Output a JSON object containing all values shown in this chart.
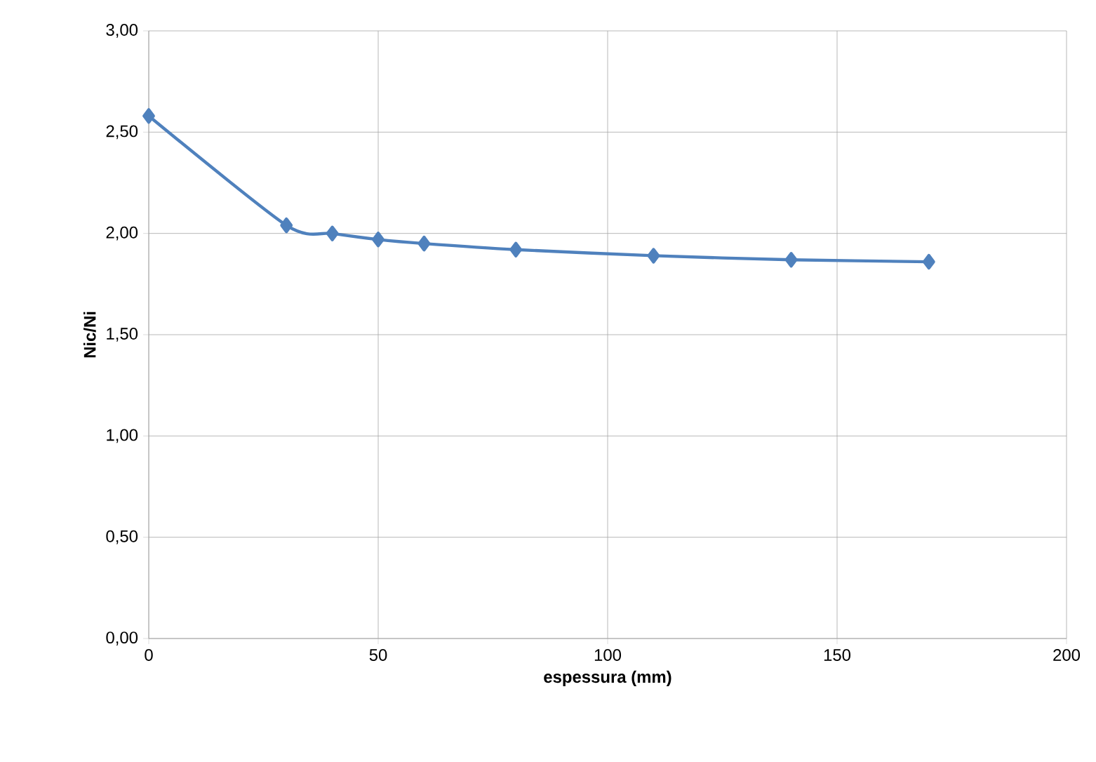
{
  "chart_data": {
    "type": "line",
    "xlabel": "espessura (mm)",
    "ylabel": "Nic/Ni",
    "x": [
      0,
      30,
      40,
      50,
      60,
      80,
      110,
      140,
      170
    ],
    "series": [
      {
        "color": "#4f81bd",
        "values": [
          2.58,
          2.04,
          2.0,
          1.97,
          1.95,
          1.92,
          1.89,
          1.87,
          1.86
        ]
      }
    ],
    "xlim": [
      0,
      200
    ],
    "xticks": [
      0,
      50,
      100,
      150,
      200
    ],
    "ylim": [
      0,
      3
    ],
    "yticks": [
      {
        "value": 0,
        "label": "0,00"
      },
      {
        "value": 0.5,
        "label": "0,50"
      },
      {
        "value": 1,
        "label": "1,00"
      },
      {
        "value": 1.5,
        "label": "1,50"
      },
      {
        "value": 2,
        "label": "2,00"
      },
      {
        "value": 2.5,
        "label": "2,50"
      },
      {
        "value": 3,
        "label": "3,00"
      }
    ],
    "grid": true,
    "marker": "diamond",
    "line_style": "solid"
  }
}
